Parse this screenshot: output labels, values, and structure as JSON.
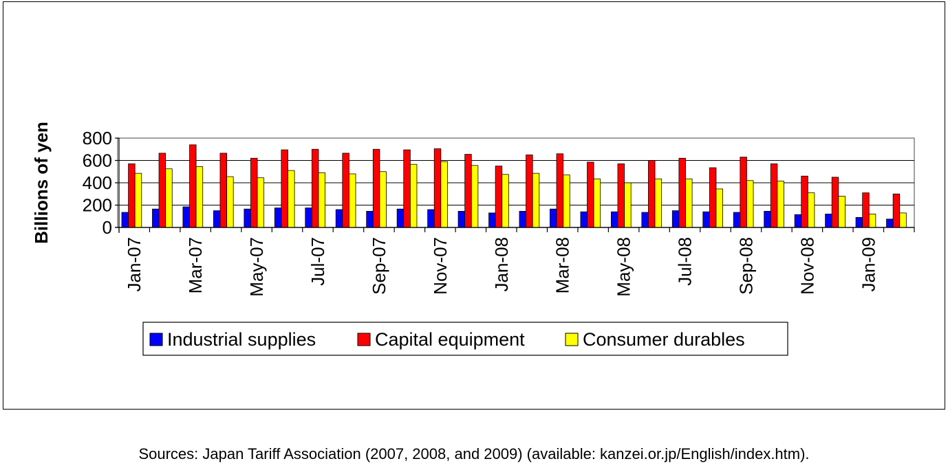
{
  "chart_data": {
    "type": "bar",
    "title": "",
    "xlabel": "",
    "ylabel": "Billions of yen",
    "ylim": [
      0,
      800
    ],
    "yticks": [
      0,
      200,
      400,
      600,
      800
    ],
    "grid": true,
    "legend_position": "bottom",
    "categories": [
      "Jan-07",
      "Feb-07",
      "Mar-07",
      "Apr-07",
      "May-07",
      "Jun-07",
      "Jul-07",
      "Aug-07",
      "Sep-07",
      "Oct-07",
      "Nov-07",
      "Dec-07",
      "Jan-08",
      "Feb-08",
      "Mar-08",
      "Apr-08",
      "May-08",
      "Jun-08",
      "Jul-08",
      "Aug-08",
      "Sep-08",
      "Oct-08",
      "Nov-08",
      "Dec-08",
      "Jan-09",
      "Feb-09"
    ],
    "tick_labels": [
      "Jan-07",
      "",
      "Mar-07",
      "",
      "May-07",
      "",
      "Jul-07",
      "",
      "Sep-07",
      "",
      "Nov-07",
      "",
      "Jan-08",
      "",
      "Mar-08",
      "",
      "May-08",
      "",
      "Jul-08",
      "",
      "Sep-08",
      "",
      "Nov-08",
      "",
      "Jan-09",
      ""
    ],
    "series": [
      {
        "name": "Industrial supplies",
        "color": "#0000ff",
        "values": [
          135,
          165,
          185,
          150,
          165,
          175,
          175,
          160,
          145,
          165,
          160,
          145,
          130,
          145,
          165,
          140,
          140,
          135,
          150,
          140,
          135,
          145,
          115,
          120,
          90,
          75
        ]
      },
      {
        "name": "Capital equipment",
        "color": "#ff0000",
        "values": [
          570,
          665,
          740,
          665,
          620,
          695,
          700,
          665,
          700,
          695,
          705,
          655,
          550,
          650,
          660,
          585,
          570,
          600,
          620,
          535,
          630,
          570,
          460,
          450,
          310,
          300
        ]
      },
      {
        "name": "Consumer durables",
        "color": "#ffff00",
        "values": [
          485,
          525,
          545,
          455,
          445,
          510,
          490,
          480,
          500,
          565,
          590,
          555,
          475,
          485,
          470,
          435,
          400,
          435,
          435,
          345,
          420,
          415,
          310,
          280,
          120,
          130
        ]
      }
    ]
  },
  "source_note": "Sources: Japan Tariff Association (2007, 2008, and 2009) (available: kanzei.or.jp/English/index.htm)."
}
